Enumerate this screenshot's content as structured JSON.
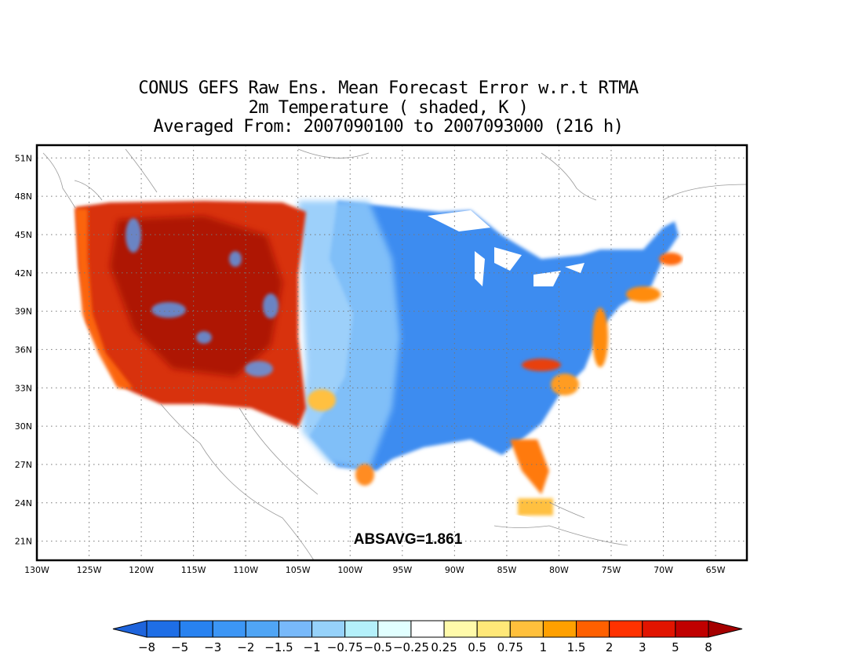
{
  "title": {
    "line1": "CONUS GEFS Raw Ens. Mean Forecast Error w.r.t RTMA",
    "line2": "2m Temperature ( shaded, K )",
    "line3": "Averaged From: 2007090100 to 2007093000 (216 h)"
  },
  "annotation": "ABSAVG=1.861",
  "map": {
    "lon_range": [
      -130,
      -62
    ],
    "lat_range": [
      19.5,
      52
    ],
    "lon_ticks": [
      "130W",
      "125W",
      "120W",
      "115W",
      "110W",
      "105W",
      "100W",
      "95W",
      "90W",
      "85W",
      "80W",
      "75W",
      "70W",
      "65W"
    ],
    "lat_ticks": [
      "21N",
      "24N",
      "27N",
      "30N",
      "33N",
      "36N",
      "39N",
      "42N",
      "45N",
      "48N",
      "51N"
    ],
    "grid": true
  },
  "colorbar": {
    "labels": [
      "−8",
      "−5",
      "−3",
      "−2",
      "−1.5",
      "−1",
      "−0.75",
      "−0.5",
      "−0.25",
      "0.25",
      "0.5",
      "0.75",
      "1",
      "1.5",
      "2",
      "3",
      "5",
      "8"
    ],
    "colors": [
      "#1e64dc",
      "#1e6ee6",
      "#2882f0",
      "#3c96f5",
      "#50a5f5",
      "#78b9fa",
      "#96d2fa",
      "#b4f0fa",
      "#e1ffff",
      "#ffffff",
      "#fffaaa",
      "#ffe878",
      "#ffc03c",
      "#ffa000",
      "#ff6000",
      "#ff3200",
      "#e11400",
      "#c00000",
      "#a50000"
    ]
  }
}
